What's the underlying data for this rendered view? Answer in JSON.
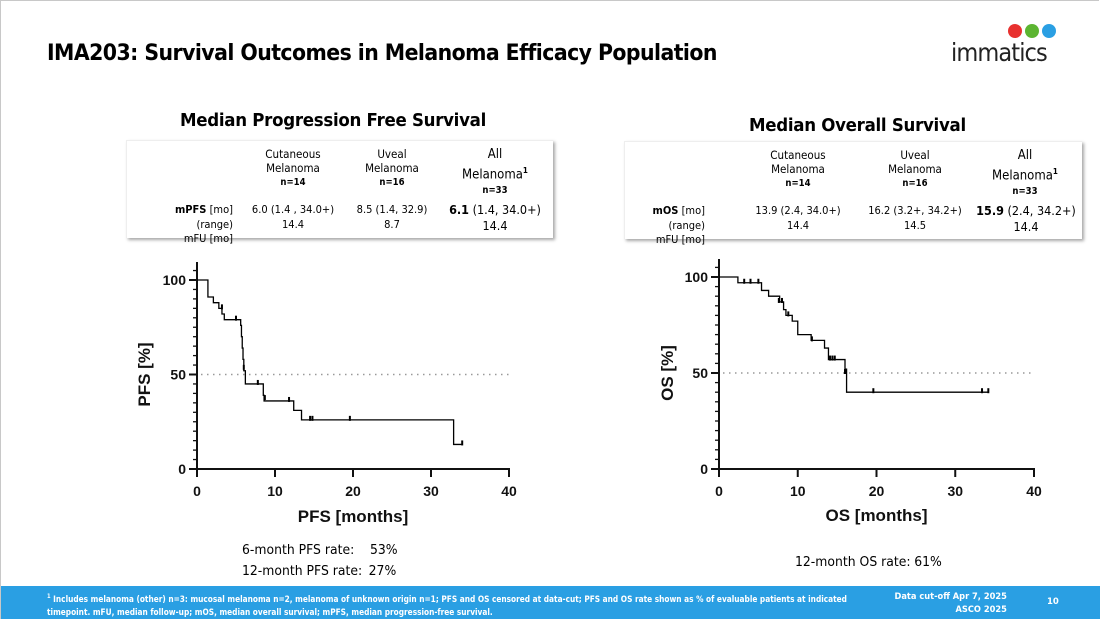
{
  "slide": {
    "title": "IMA203: Survival Outcomes in Melanoma Efficacy Population",
    "logo": {
      "text": "immatics",
      "dot_colors": [
        "#e8312f",
        "#5cb531",
        "#2a9fe3"
      ],
      "dot_icons": [
        "dna-cell-icon",
        "molecule-icon",
        "cell-icon"
      ]
    },
    "page_number": "10"
  },
  "pfs_table": {
    "title": "Median Progression Free Survival",
    "columns": [
      {
        "name_line1": "Cutaneous",
        "name_line2": "Melanoma",
        "n": "n=14"
      },
      {
        "name_line1": "Uveal",
        "name_line2": "Melanoma",
        "n": "n=16"
      },
      {
        "name_line1": "All",
        "name_line2": "Melanoma",
        "superscript": "1",
        "n": "n=33"
      }
    ],
    "rows": [
      {
        "label_bold": "mPFS",
        "label_rest": " [mo] (range)",
        "values": [
          "6.0 (1.4 , 34.0+)",
          "8.5 (1.4, 32.9)"
        ],
        "all_bold": "6.1",
        "all_rest": " (1.4, 34.0+)"
      },
      {
        "label_bold": "",
        "label_rest": "mFU [mo]",
        "values": [
          "14.4",
          "8.7"
        ],
        "all_bold": "",
        "all_rest": "14.4"
      }
    ]
  },
  "os_table": {
    "title": "Median Overall Survival",
    "columns": [
      {
        "name_line1": "Cutaneous",
        "name_line2": "Melanoma",
        "n": "n=14"
      },
      {
        "name_line1": "Uveal",
        "name_line2": "Melanoma",
        "n": "n=16"
      },
      {
        "name_line1": "All",
        "name_line2": "Melanoma",
        "superscript": "1",
        "n": "n=33"
      }
    ],
    "rows": [
      {
        "label_bold": "mOS",
        "label_rest": " [mo] (range)",
        "values": [
          "13.9 (2.4, 34.0+)",
          "16.2 (3.2+, 34.2+)"
        ],
        "all_bold": "15.9",
        "all_rest": " (2.4, 34.2+)"
      },
      {
        "label_bold": "",
        "label_rest": "mFU [mo]",
        "values": [
          "14.4",
          "14.5"
        ],
        "all_bold": "",
        "all_rest": "14.4"
      }
    ]
  },
  "pfs_rates": [
    {
      "label": "6-month PFS rate:",
      "value": "53%"
    },
    {
      "label": "12-month PFS rate:",
      "value": "27%"
    }
  ],
  "os_rates": [
    {
      "label": "12-month OS rate:",
      "value": "61%"
    }
  ],
  "footer": {
    "footnote_sup": "1",
    "footnote_line1": " Includes melanoma (other) n=3: mucosal melanoma n=2, melanoma of unknown origin n=1; PFS and OS censored at data-cut; PFS and OS rate shown as % of evaluable patients at indicated",
    "footnote_line2": "timepoint. mFU, median follow-up; mOS, median overall survival; mPFS, median progression-free survival.",
    "data_cutoff": "Data cut-off Apr 7, 2025",
    "conference": "ASCO 2025",
    "background_color": "#2a9fe3"
  },
  "chart_data": [
    {
      "type": "line",
      "subtype": "kaplan-meier-step",
      "title": "",
      "xlabel": "PFS [months]",
      "ylabel": "PFS [%]",
      "xlim": [
        0,
        40
      ],
      "ylim": [
        0,
        100
      ],
      "xticks": [
        0,
        10,
        20,
        30,
        40
      ],
      "yticks": [
        0,
        50,
        100
      ],
      "y_minor_tick_step": 5,
      "reference_line": {
        "y": 50,
        "style": "dotted",
        "color": "#999999"
      },
      "grid": false,
      "series": [
        {
          "name": "All Melanoma PFS",
          "color": "#000000",
          "steps": [
            [
              0,
              100
            ],
            [
              1.4,
              91
            ],
            [
              2.1,
              88
            ],
            [
              2.8,
              85
            ],
            [
              3.2,
              82
            ],
            [
              3.5,
              79
            ],
            [
              5.6,
              76
            ],
            [
              5.7,
              70
            ],
            [
              5.8,
              64
            ],
            [
              5.9,
              58
            ],
            [
              6.0,
              52
            ],
            [
              6.2,
              45
            ],
            [
              8.5,
              39
            ],
            [
              8.6,
              36
            ],
            [
              12.4,
              31
            ],
            [
              13.4,
              26
            ],
            [
              32.9,
              13
            ],
            [
              34.0,
              13
            ]
          ],
          "censored": [
            [
              3.2,
              85
            ],
            [
              5.0,
              79
            ],
            [
              6.0,
              53
            ],
            [
              7.8,
              45
            ],
            [
              8.7,
              37
            ],
            [
              11.8,
              36
            ],
            [
              14.5,
              26
            ],
            [
              14.8,
              26
            ],
            [
              19.6,
              26
            ],
            [
              34.0,
              13
            ]
          ]
        }
      ]
    },
    {
      "type": "line",
      "subtype": "kaplan-meier-step",
      "title": "",
      "xlabel": "OS [months]",
      "ylabel": "OS [%]",
      "xlim": [
        0,
        40
      ],
      "ylim": [
        0,
        100
      ],
      "xticks": [
        0,
        10,
        20,
        30,
        40
      ],
      "yticks": [
        0,
        50,
        100
      ],
      "y_minor_tick_step": 5,
      "reference_line": {
        "y": 50,
        "style": "dotted",
        "color": "#999999"
      },
      "grid": false,
      "series": [
        {
          "name": "All Melanoma OS",
          "color": "#000000",
          "steps": [
            [
              0,
              100
            ],
            [
              2.4,
              97
            ],
            [
              5.4,
              93
            ],
            [
              6.3,
              90
            ],
            [
              7.7,
              87
            ],
            [
              8.2,
              83
            ],
            [
              8.5,
              80
            ],
            [
              9.3,
              77
            ],
            [
              10.0,
              70
            ],
            [
              11.7,
              67
            ],
            [
              13.4,
              63
            ],
            [
              13.9,
              57
            ],
            [
              16.0,
              52
            ],
            [
              16.2,
              40
            ],
            [
              34.2,
              40
            ]
          ],
          "censored": [
            [
              3.2,
              97
            ],
            [
              4.0,
              97
            ],
            [
              5.0,
              97
            ],
            [
              7.6,
              87
            ],
            [
              8.0,
              87
            ],
            [
              8.8,
              80
            ],
            [
              11.8,
              67
            ],
            [
              14.1,
              57
            ],
            [
              14.4,
              57
            ],
            [
              14.7,
              57
            ],
            [
              16.0,
              50
            ],
            [
              19.6,
              40
            ],
            [
              33.4,
              40
            ],
            [
              34.2,
              40
            ]
          ]
        }
      ]
    }
  ]
}
